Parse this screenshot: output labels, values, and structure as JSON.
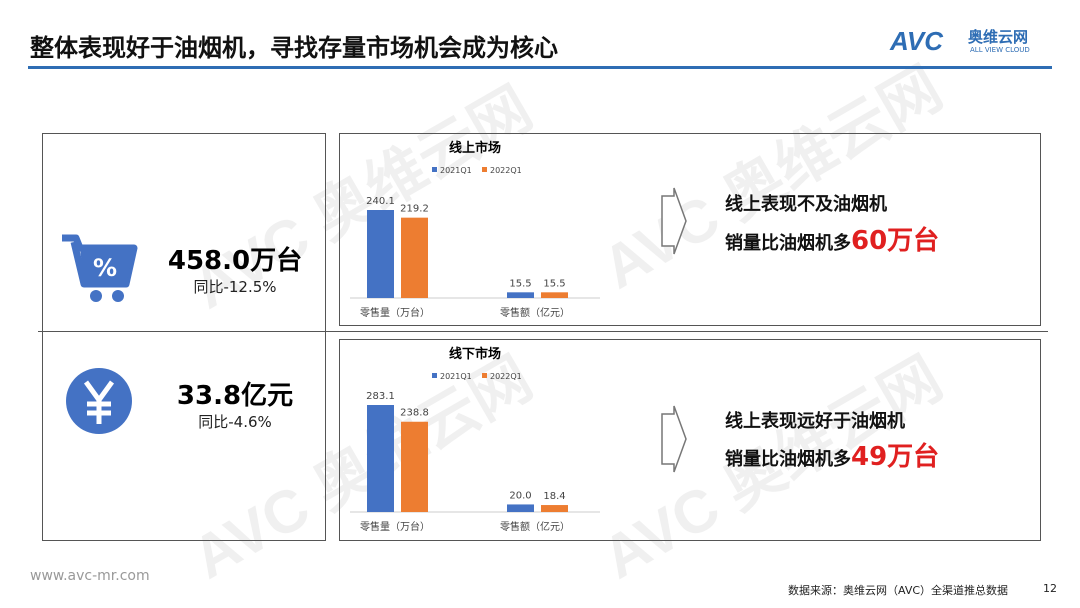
{
  "header": {
    "title": "整体表现好于油烟机，寻找存量市场机会成为核心",
    "logo_text": "AVC",
    "logo_cn": "奥维云网",
    "logo_en": "ALL VIEW CLOUD"
  },
  "colors": {
    "accent": "#2e6db4",
    "series_2021": "#4472c4",
    "series_2022": "#ed7d31",
    "highlight": "#e02020"
  },
  "kpis": [
    {
      "icon": "shopping-cart-percent-icon",
      "value": "458.0万台",
      "yoy": "同比-12.5%"
    },
    {
      "icon": "yuan-icon",
      "value": "33.8亿元",
      "yoy": "同比-4.6%"
    }
  ],
  "notes": [
    {
      "line1": "线上表现不及油烟机",
      "line2_prefix": "销量比油烟机多",
      "line2_highlight": "60万台"
    },
    {
      "line1": "线上表现远好于油烟机",
      "line2_prefix": "销量比油烟机多",
      "line2_highlight": "49万台"
    }
  ],
  "chart_data": [
    {
      "type": "bar",
      "title": "线上市场",
      "categories": [
        "零售量（万台）",
        "零售额（亿元）"
      ],
      "series": [
        {
          "name": "2021Q1",
          "values": [
            240.1,
            15.5
          ],
          "labels": [
            "240.1",
            "15.5"
          ]
        },
        {
          "name": "2022Q1",
          "values": [
            219.2,
            15.5
          ],
          "labels": [
            "219.2",
            "15.5"
          ]
        }
      ],
      "legend": "top",
      "grid": false
    },
    {
      "type": "bar",
      "title": "线下市场",
      "categories": [
        "零售量（万台）",
        "零售额（亿元）"
      ],
      "series": [
        {
          "name": "2021Q1",
          "values": [
            283.1,
            20.0
          ],
          "labels": [
            "283.1",
            "20.0"
          ]
        },
        {
          "name": "2022Q1",
          "values": [
            238.8,
            18.4
          ],
          "labels": [
            "238.8",
            "18.4"
          ]
        }
      ],
      "legend": "top",
      "grid": false
    }
  ],
  "footer": {
    "website": "www.avc-mr.com",
    "source": "数据来源：奥维云网（AVC）全渠道推总数据",
    "page": "12"
  }
}
